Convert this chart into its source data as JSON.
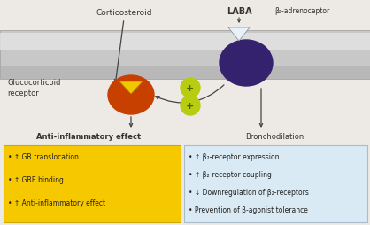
{
  "bg_color": "#edeae5",
  "tube_color": "#c8c8c8",
  "tube_highlight": "#e2e2e2",
  "tube_shadow": "#aaaaaa",
  "title_label": "Corticosteroid",
  "laba_label": "LABA",
  "beta2_label": "β₂-adrenoceptor",
  "glucocorticoid_label1": "Glucocorticoid",
  "glucocorticoid_label2": "receptor",
  "anti_inflam_label": "Anti-inflammatory effect",
  "broncho_label": "Bronchodilation",
  "yellow_box_lines": [
    "• ↑ GR translocation",
    "• ↑ GRE binding",
    "• ↑ Anti-inflammatory effect"
  ],
  "blue_box_lines": [
    "• ↑ β₂-receptor expression",
    "• ↑ β₂-receptor coupling",
    "• ↓ Downregulation of β₂-receptors",
    "• Prevention of β-agonist tolerance"
  ],
  "yellow_box_color": "#f5c800",
  "blue_box_color": "#daeaf5",
  "receptor_orange": "#c84000",
  "receptor_purple": "#35226e",
  "triangle_yellow": "#f0c800",
  "triangle_white": "#e8f0f8",
  "plus_color": "#b8cc10",
  "arrow_color": "#444444"
}
